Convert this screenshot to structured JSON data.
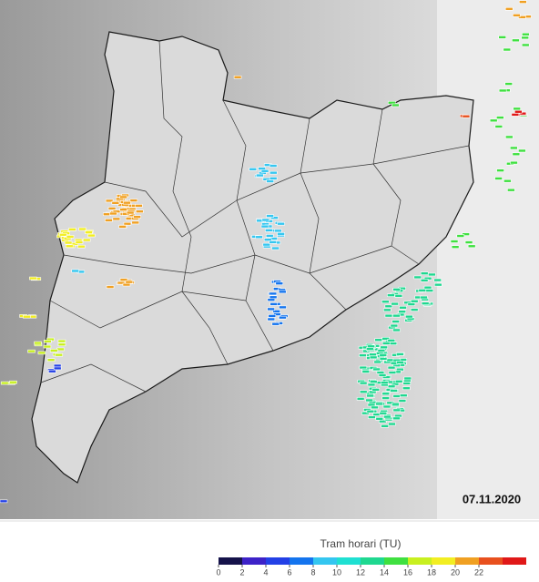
{
  "map": {
    "date": "07.11.2020"
  },
  "legend": {
    "title": "Tram horari (TU)",
    "ticks": [
      0,
      2,
      4,
      6,
      8,
      10,
      12,
      14,
      16,
      18,
      20,
      22
    ],
    "colors": [
      "#15124a",
      "#3d22c8",
      "#2340e6",
      "#1474ee",
      "#34c6f0",
      "#1fe0d2",
      "#1fd890",
      "#3fe040",
      "#c8f020",
      "#f2ee22",
      "#f0a022",
      "#e8501e",
      "#e01818"
    ]
  }
}
